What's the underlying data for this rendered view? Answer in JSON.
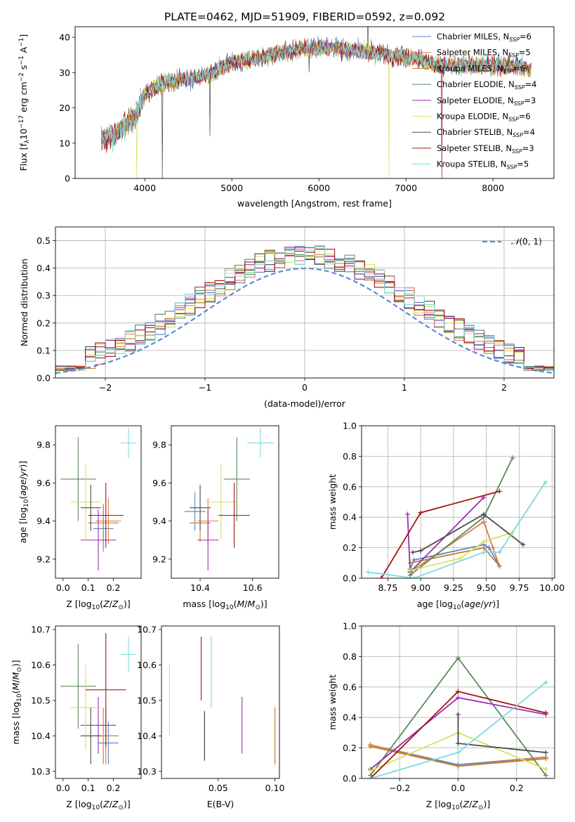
{
  "title": "PLATE=0462, MJD=51909, FIBERID=0592, z=0.092",
  "models": [
    {
      "name": "Chabrier MILES",
      "nssp": "6",
      "color": "#5b7fc4"
    },
    {
      "name": "Salpeter MILES",
      "nssp": "5",
      "color": "#e07a4a"
    },
    {
      "name": "Kroupa MILES",
      "nssp": "6",
      "color": "#c0812b"
    },
    {
      "name": "Chabrier ELODIE",
      "nssp": "4",
      "color": "#5a8a5a"
    },
    {
      "name": "Salpeter ELODIE",
      "nssp": "3",
      "color": "#9b2fae"
    },
    {
      "name": "Kroupa ELODIE",
      "nssp": "6",
      "color": "#d4e35a"
    },
    {
      "name": "Chabrier STELIB",
      "nssp": "4",
      "color": "#4a4a4a"
    },
    {
      "name": "Salpeter STELIB",
      "nssp": "3",
      "color": "#a31515"
    },
    {
      "name": "Kroupa STELIB",
      "nssp": "5",
      "color": "#7fd8de"
    }
  ],
  "chart_data": [
    {
      "id": "spectrum",
      "type": "line",
      "xlabel": "wavelength [Angstrom, rest frame]",
      "ylabel": "Flux [f",
      "xlim": [
        3200,
        8700
      ],
      "ylim": [
        0,
        43
      ],
      "xticks": [
        4000,
        5000,
        6000,
        7000,
        8000
      ],
      "yticks": [
        0,
        10,
        20,
        30,
        40
      ],
      "legend_position": "top-right",
      "continuum": [
        [
          3500,
          11
        ],
        [
          3700,
          13
        ],
        [
          3900,
          18
        ],
        [
          4000,
          24
        ],
        [
          4200,
          27
        ],
        [
          4400,
          28
        ],
        [
          4700,
          29
        ],
        [
          5000,
          33
        ],
        [
          5300,
          34
        ],
        [
          5600,
          36
        ],
        [
          5900,
          37
        ],
        [
          6200,
          37
        ],
        [
          6500,
          36
        ],
        [
          6800,
          35
        ],
        [
          7100,
          34
        ],
        [
          7400,
          32
        ],
        [
          7700,
          32
        ],
        [
          8000,
          32
        ],
        [
          8300,
          32
        ],
        [
          8400,
          31
        ]
      ]
    },
    {
      "id": "residuals",
      "type": "line",
      "xlabel": "(data-model)/error",
      "ylabel": "Normed distribution",
      "xlim": [
        -2.5,
        2.5
      ],
      "ylim": [
        0,
        0.55
      ],
      "xticks": [
        -2,
        -1,
        0,
        1,
        2
      ],
      "yticks": [
        0.0,
        0.1,
        0.2,
        0.3,
        0.4,
        0.5
      ],
      "legend": "N(0,1)",
      "legend_position": "top-right",
      "bin_width": 0.1,
      "grid": true
    },
    {
      "id": "age-vs-Z",
      "type": "scatter",
      "xlabel": "Z [log",
      "ylabel": "age  [log",
      "xlim": [
        -0.03,
        0.31
      ],
      "ylim": [
        9.1,
        9.9
      ],
      "xticks": [
        0.0,
        0.1,
        0.2
      ],
      "yticks": [
        9.2,
        9.4,
        9.6,
        9.8
      ],
      "points": [
        {
          "m": 0,
          "x": 0.16,
          "xe": 0.04,
          "y": 9.36,
          "ye": 0.12
        },
        {
          "m": 1,
          "x": 0.18,
          "xe": 0.05,
          "y": 9.4,
          "ye": 0.12
        },
        {
          "m": 2,
          "x": 0.16,
          "xe": 0.06,
          "y": 9.39,
          "ye": 0.1
        },
        {
          "m": 3,
          "x": 0.06,
          "xe": 0.07,
          "y": 9.62,
          "ye": 0.22
        },
        {
          "m": 4,
          "x": 0.14,
          "xe": 0.07,
          "y": 9.3,
          "ye": 0.16
        },
        {
          "m": 5,
          "x": 0.09,
          "xe": 0.06,
          "y": 9.5,
          "ye": 0.2
        },
        {
          "m": 6,
          "x": 0.11,
          "xe": 0.04,
          "y": 9.47,
          "ye": 0.12
        },
        {
          "m": 7,
          "x": 0.17,
          "xe": 0.07,
          "y": 9.43,
          "ye": 0.17
        },
        {
          "m": 8,
          "x": 0.26,
          "xe": 0.03,
          "y": 9.81,
          "ye": 0.08
        }
      ]
    },
    {
      "id": "age-vs-mass",
      "type": "scatter",
      "xlabel": "mass [log",
      "ylabel": "",
      "xlim": [
        10.29,
        10.7
      ],
      "ylim": [
        9.1,
        9.9
      ],
      "xticks": [
        10.4,
        10.6
      ],
      "yticks": [
        9.2,
        9.4,
        9.6,
        9.8
      ],
      "points": [
        {
          "m": 0,
          "x": 10.38,
          "xe": 0.04,
          "y": 9.45,
          "ye": 0.1
        },
        {
          "m": 1,
          "x": 10.43,
          "xe": 0.04,
          "y": 9.4,
          "ye": 0.12
        },
        {
          "m": 2,
          "x": 10.4,
          "xe": 0.04,
          "y": 9.39,
          "ye": 0.1
        },
        {
          "m": 3,
          "x": 10.54,
          "xe": 0.05,
          "y": 9.62,
          "ye": 0.22
        },
        {
          "m": 4,
          "x": 10.43,
          "xe": 0.04,
          "y": 9.3,
          "ye": 0.16
        },
        {
          "m": 5,
          "x": 10.48,
          "xe": 0.06,
          "y": 9.5,
          "ye": 0.2
        },
        {
          "m": 6,
          "x": 10.4,
          "xe": 0.04,
          "y": 9.47,
          "ye": 0.12
        },
        {
          "m": 7,
          "x": 10.53,
          "xe": 0.06,
          "y": 9.43,
          "ye": 0.17
        },
        {
          "m": 8,
          "x": 10.63,
          "xe": 0.05,
          "y": 9.81,
          "ye": 0.08
        }
      ]
    },
    {
      "id": "weight-vs-age",
      "type": "line",
      "xlabel": "age  [log",
      "ylabel": "mass weight",
      "xlim": [
        8.55,
        10.02
      ],
      "ylim": [
        0,
        1.0
      ],
      "xticks": [
        8.75,
        9.0,
        9.25,
        9.5,
        9.75,
        10.0
      ],
      "yticks": [
        0.0,
        0.2,
        0.4,
        0.6,
        0.8,
        1.0
      ],
      "grid": true,
      "series": [
        {
          "m": 0,
          "points": [
            [
              8.92,
              0.06
            ],
            [
              8.95,
              0.12
            ],
            [
              9.48,
              0.22
            ],
            [
              9.52,
              0.2
            ],
            [
              9.6,
              0.08
            ]
          ]
        },
        {
          "m": 1,
          "points": [
            [
              8.92,
              0.04
            ],
            [
              9.48,
              0.37
            ],
            [
              9.55,
              0.2
            ],
            [
              9.6,
              0.08
            ]
          ]
        },
        {
          "m": 2,
          "points": [
            [
              8.92,
              0.1
            ],
            [
              9.48,
              0.2
            ],
            [
              9.6,
              0.08
            ]
          ]
        },
        {
          "m": 3,
          "points": [
            [
              8.92,
              0.02
            ],
            [
              9.48,
              0.4
            ],
            [
              9.7,
              0.79
            ]
          ]
        },
        {
          "m": 4,
          "points": [
            [
              8.9,
              0.42
            ],
            [
              8.92,
              0.04
            ],
            [
              9.48,
              0.53
            ]
          ]
        },
        {
          "m": 5,
          "points": [
            [
              8.92,
              0.05
            ],
            [
              9.3,
              0.13
            ],
            [
              9.48,
              0.24
            ],
            [
              9.7,
              0.3
            ]
          ]
        },
        {
          "m": 6,
          "points": [
            [
              8.94,
              0.17
            ],
            [
              9.0,
              0.18
            ],
            [
              9.48,
              0.42
            ],
            [
              9.78,
              0.22
            ]
          ]
        },
        {
          "m": 7,
          "points": [
            [
              8.7,
              0.0
            ],
            [
              9.0,
              0.43
            ],
            [
              9.6,
              0.57
            ]
          ]
        },
        {
          "m": 8,
          "points": [
            [
              8.6,
              0.04
            ],
            [
              8.95,
              0.0
            ],
            [
              9.48,
              0.17
            ],
            [
              9.6,
              0.17
            ],
            [
              9.95,
              0.63
            ]
          ]
        }
      ]
    },
    {
      "id": "mass-vs-Z",
      "type": "scatter",
      "xlabel": "Z [log",
      "ylabel": "mass [log",
      "xlim": [
        -0.03,
        0.31
      ],
      "ylim": [
        10.28,
        10.71
      ],
      "xticks": [
        0.0,
        0.1,
        0.2
      ],
      "yticks": [
        10.3,
        10.4,
        10.5,
        10.6,
        10.7
      ],
      "points": [
        {
          "m": 0,
          "x": 0.18,
          "xe": 0.04,
          "y": 10.38,
          "ye": 0.06
        },
        {
          "m": 1,
          "x": 0.17,
          "xe": 0.05,
          "y": 10.4,
          "ye": 0.08
        },
        {
          "m": 2,
          "x": 0.16,
          "xe": 0.06,
          "y": 10.4,
          "ye": 0.08
        },
        {
          "m": 3,
          "x": 0.06,
          "xe": 0.07,
          "y": 10.54,
          "ye": 0.12
        },
        {
          "m": 4,
          "x": 0.14,
          "xe": 0.07,
          "y": 10.43,
          "ye": 0.08
        },
        {
          "m": 5,
          "x": 0.09,
          "xe": 0.06,
          "y": 10.48,
          "ye": 0.12
        },
        {
          "m": 6,
          "x": 0.11,
          "xe": 0.04,
          "y": 10.4,
          "ye": 0.08
        },
        {
          "m": 7,
          "x": 0.17,
          "xe": 0.08,
          "y": 10.53,
          "ye": 0.16
        },
        {
          "m": 8,
          "x": 0.26,
          "xe": 0.03,
          "y": 10.63,
          "ye": 0.05
        }
      ]
    },
    {
      "id": "mass-vs-ebv",
      "type": "scatter",
      "xlabel": "E(B-V)",
      "ylabel": "",
      "xlim": [
        0.0,
        0.104
      ],
      "ylim": [
        10.28,
        10.71
      ],
      "xticks": [
        0.05,
        0.1
      ],
      "yticks": [
        10.3,
        10.4,
        10.5,
        10.6,
        10.7
      ],
      "points": [
        {
          "m": 0,
          "x": 0.1,
          "y": 10.38,
          "ye": 0.06
        },
        {
          "m": 1,
          "x": 0.1,
          "y": 10.4,
          "ye": 0.08
        },
        {
          "m": 2,
          "x": 0.1,
          "y": 10.4,
          "ye": 0.08
        },
        {
          "m": 3,
          "x": 0.038,
          "y": 10.4,
          "ye": 0.07
        },
        {
          "m": 4,
          "x": 0.071,
          "y": 10.43,
          "ye": 0.08
        },
        {
          "m": 5,
          "x": 0.007,
          "y": 10.5,
          "ye": 0.1
        },
        {
          "m": 6,
          "x": 0.038,
          "y": 10.4,
          "ye": 0.07
        },
        {
          "m": 7,
          "x": 0.035,
          "y": 10.59,
          "ye": 0.09
        },
        {
          "m": 8,
          "x": 0.044,
          "y": 10.58,
          "ye": 0.1
        }
      ]
    },
    {
      "id": "weight-vs-Z",
      "type": "line",
      "xlabel": "Z [log",
      "ylabel": "mass weight",
      "xlim": [
        -0.33,
        0.33
      ],
      "ylim": [
        0,
        1.0
      ],
      "xticks": [
        -0.2,
        0.0,
        0.2
      ],
      "yticks": [
        0.0,
        0.2,
        0.4,
        0.6,
        0.8,
        1.0
      ],
      "grid": true,
      "series": [
        {
          "m": 0,
          "points": [
            [
              -0.3,
              0.22
            ],
            [
              0.0,
              0.09
            ],
            [
              0.3,
              0.14
            ]
          ]
        },
        {
          "m": 1,
          "points": [
            [
              -0.3,
              0.22
            ],
            [
              0.0,
              0.08
            ],
            [
              0.3,
              0.14
            ]
          ]
        },
        {
          "m": 2,
          "points": [
            [
              -0.3,
              0.21
            ],
            [
              0.0,
              0.08
            ],
            [
              0.3,
              0.13
            ]
          ]
        },
        {
          "m": 3,
          "points": [
            [
              -0.3,
              0.02
            ],
            [
              0.0,
              0.79
            ],
            [
              0.3,
              0.02
            ]
          ]
        },
        {
          "m": 4,
          "points": [
            [
              -0.3,
              0.06
            ],
            [
              0.0,
              0.53
            ],
            [
              0.3,
              0.42
            ]
          ]
        },
        {
          "m": 5,
          "points": [
            [
              -0.3,
              0.05
            ],
            [
              0.0,
              0.3
            ],
            [
              0.3,
              0.06
            ]
          ]
        },
        {
          "m": 6,
          "points": [
            [
              0.0,
              0.42
            ],
            [
              0.0,
              0.23
            ],
            [
              0.3,
              0.17
            ]
          ]
        },
        {
          "m": 7,
          "points": [
            [
              -0.3,
              0.0
            ],
            [
              0.0,
              0.57
            ],
            [
              0.3,
              0.43
            ]
          ]
        },
        {
          "m": 8,
          "points": [
            [
              -0.3,
              0.0
            ],
            [
              0.0,
              0.17
            ],
            [
              0.3,
              0.63
            ]
          ]
        }
      ]
    }
  ]
}
